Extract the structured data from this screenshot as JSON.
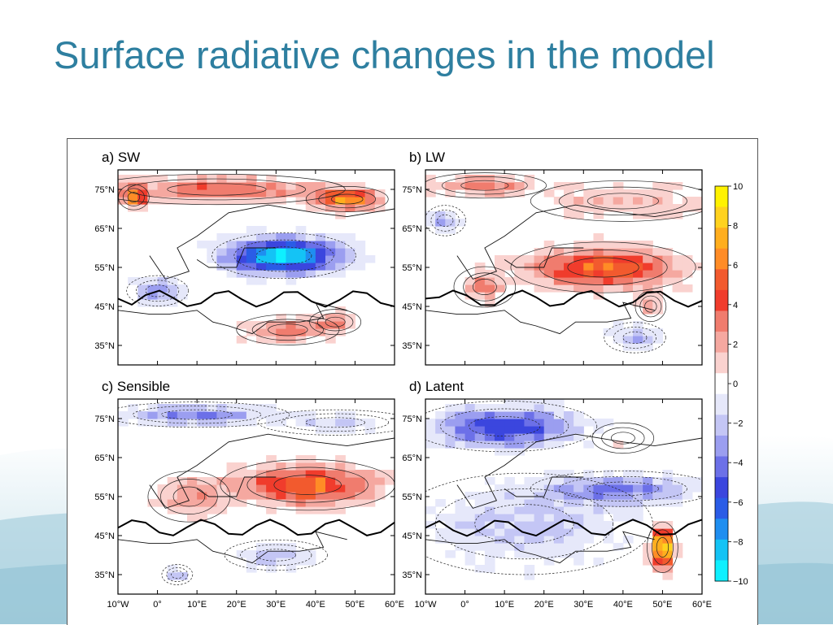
{
  "slide": {
    "title": "Surface radiative changes in the model"
  },
  "colors": {
    "title": "#2e7fa0",
    "background_wave": "#cfe6ee"
  },
  "chart_data": {
    "type": "heatmap",
    "panels": [
      {
        "id": "a",
        "label": "a)",
        "name": "SW"
      },
      {
        "id": "b",
        "label": "b)",
        "name": "LW"
      },
      {
        "id": "c",
        "label": "c)",
        "name": "Sensible"
      },
      {
        "id": "d",
        "label": "d)",
        "name": "Latent"
      }
    ],
    "lon_range": [
      -10,
      60
    ],
    "lat_range": [
      30,
      80
    ],
    "x_tick_labels": [
      "10°W",
      "0°",
      "10°E",
      "20°E",
      "30°E",
      "40°E",
      "50°E",
      "60°E"
    ],
    "x_tick_values": [
      -10,
      0,
      10,
      20,
      30,
      40,
      50,
      60
    ],
    "y_tick_labels": [
      "75°N",
      "65°N",
      "55°N",
      "45°N",
      "35°N"
    ],
    "y_tick_values": [
      75,
      65,
      55,
      45,
      35
    ],
    "colorbar": {
      "labels": [
        "10",
        "8",
        "6",
        "4",
        "2",
        "0",
        "−2",
        "−4",
        "−6",
        "−8",
        "−10"
      ],
      "values": [
        10,
        8,
        6,
        4,
        2,
        0,
        -2,
        -4,
        -6,
        -8,
        -10
      ],
      "colors": [
        "#fff200",
        "#ffd21e",
        "#ffae1e",
        "#ff8c26",
        "#f25a2e",
        "#f03c2c",
        "#f07c6e",
        "#f5a8a0",
        "#fad2cf",
        "#ffffff",
        "#e6e8fa",
        "#c4c6f5",
        "#9b9ef0",
        "#6c70e8",
        "#3b46de",
        "#2a5ce6",
        "#1f8ef0",
        "#14c3f5",
        "#0ef0ff"
      ]
    },
    "features": {
      "a": [
        {
          "sign": 1,
          "lon": 15,
          "lat": 75,
          "slon": 25,
          "slat": 3,
          "amp": 4
        },
        {
          "sign": 1,
          "lon": 48,
          "lat": 72.5,
          "slon": 8,
          "slat": 2.5,
          "amp": 7
        },
        {
          "sign": 1,
          "lon": -6,
          "lat": 73,
          "slon": 3,
          "slat": 2.5,
          "amp": 6
        },
        {
          "sign": -1,
          "lon": 32,
          "lat": 58,
          "slon": 14,
          "slat": 4.5,
          "amp": 9.5
        },
        {
          "sign": -1,
          "lon": 0,
          "lat": 49,
          "slon": 6,
          "slat": 3,
          "amp": 4
        },
        {
          "sign": 1,
          "lon": 33,
          "lat": 39,
          "slon": 10,
          "slat": 3,
          "amp": 3.5
        },
        {
          "sign": 1,
          "lon": 45,
          "lat": 41,
          "slon": 5,
          "slat": 2.5,
          "amp": 3
        }
      ],
      "b": [
        {
          "sign": 1,
          "lon": 5,
          "lat": 76,
          "slon": 12,
          "slat": 2.5,
          "amp": 3.5
        },
        {
          "sign": 1,
          "lon": 35,
          "lat": 55,
          "slon": 18,
          "slat": 5,
          "amp": 6
        },
        {
          "sign": 1,
          "lon": 5,
          "lat": 50,
          "slon": 6,
          "slat": 4,
          "amp": 3
        },
        {
          "sign": 1,
          "lon": 40,
          "lat": 72,
          "slon": 18,
          "slat": 4,
          "amp": 2.5
        },
        {
          "sign": 1,
          "lon": 47,
          "lat": 45,
          "slon": 3,
          "slat": 3,
          "amp": 3
        },
        {
          "sign": -1,
          "lon": -5,
          "lat": 67,
          "slon": 4,
          "slat": 3,
          "amp": 3
        },
        {
          "sign": -1,
          "lon": 43,
          "lat": 37,
          "slon": 6,
          "slat": 3,
          "amp": 3
        }
      ],
      "c": [
        {
          "sign": -1,
          "lon": 10,
          "lat": 76,
          "slon": 18,
          "slat": 2.5,
          "amp": 4
        },
        {
          "sign": -1,
          "lon": 45,
          "lat": 74,
          "slon": 15,
          "slat": 2.5,
          "amp": 1.8
        },
        {
          "sign": 1,
          "lon": 38,
          "lat": 58,
          "slon": 17,
          "slat": 5,
          "amp": 6
        },
        {
          "sign": 1,
          "lon": 8,
          "lat": 55,
          "slon": 8,
          "slat": 5,
          "amp": 3
        },
        {
          "sign": -1,
          "lon": 30,
          "lat": 40,
          "slon": 10,
          "slat": 3,
          "amp": 2.8
        },
        {
          "sign": -1,
          "lon": 5,
          "lat": 35,
          "slon": 3,
          "slat": 2,
          "amp": 2.5
        }
      ],
      "d": [
        {
          "sign": -1,
          "lon": 10,
          "lat": 73,
          "slon": 18,
          "slat": 5,
          "amp": 6
        },
        {
          "sign": -1,
          "lon": 40,
          "lat": 57,
          "slon": 18,
          "slat": 3.5,
          "amp": 4
        },
        {
          "sign": -1,
          "lon": 15,
          "lat": 48,
          "slon": 25,
          "slat": 10,
          "amp": 2.5
        },
        {
          "sign": 1,
          "lon": 50,
          "lat": 42,
          "slon": 3,
          "slat": 5,
          "amp": 10
        },
        {
          "sign": 1,
          "lon": 40,
          "lat": 70,
          "slon": 6,
          "slat": 3,
          "amp": 1.2
        }
      ]
    }
  }
}
